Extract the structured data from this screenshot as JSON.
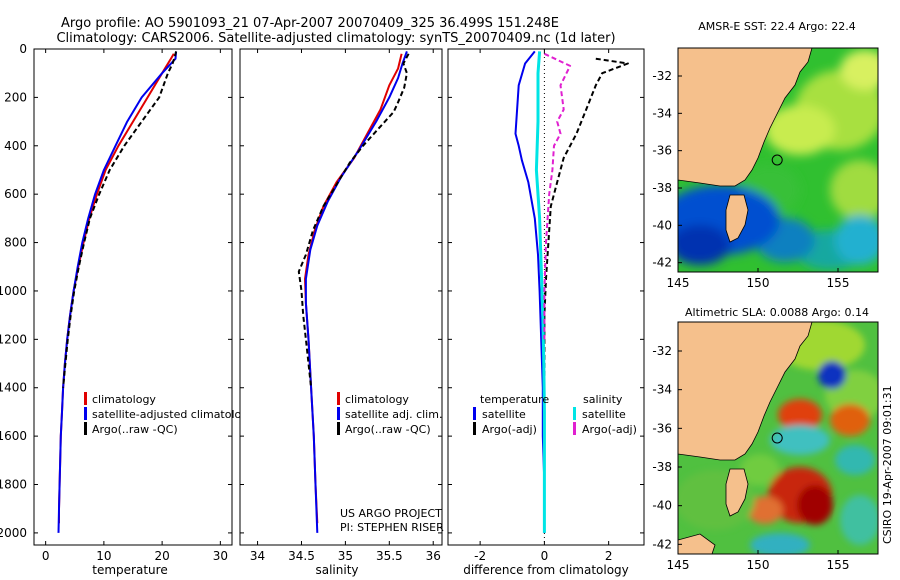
{
  "header": {
    "line1": "Argo profile: AO 5901093_21 07-Apr-2007 20070409_325 36.499S 151.248E",
    "line2": "Climatology: CARS2006. Satellite-adjusted climatology: synTS_20070409.nc (1d later)"
  },
  "colors": {
    "climatology": "#e00000",
    "satellite": "#0000ee",
    "argo": "#000000",
    "cyan": "#00e5e5",
    "magenta": "#e020d0",
    "land": "#f5c08c"
  },
  "chart_data": [
    {
      "type": "line",
      "xlabel": "temperature",
      "xlim": [
        -2,
        32
      ],
      "ylim": [
        0,
        2050
      ],
      "yticks": [
        0,
        200,
        400,
        600,
        800,
        1000,
        1200,
        1400,
        1600,
        1800,
        2000
      ],
      "xticks": [
        0,
        10,
        20,
        30
      ],
      "legend": [
        "climatology",
        "satellite-adjusted climatology",
        "Argo(..raw -QC)"
      ],
      "series": [
        {
          "name": "climatology",
          "points": [
            [
              22.0,
              20
            ],
            [
              21.5,
              40
            ],
            [
              20.0,
              100
            ],
            [
              17.5,
              200
            ],
            [
              15.0,
              300
            ],
            [
              12.5,
              400
            ],
            [
              10.3,
              500
            ],
            [
              8.8,
              600
            ],
            [
              7.5,
              700
            ],
            [
              6.5,
              800
            ],
            [
              5.6,
              900
            ],
            [
              4.8,
              1000
            ],
            [
              4.2,
              1100
            ],
            [
              3.7,
              1200
            ],
            [
              3.3,
              1300
            ],
            [
              3.0,
              1400
            ],
            [
              2.8,
              1500
            ],
            [
              2.6,
              1600
            ],
            [
              2.5,
              1700
            ],
            [
              2.4,
              1800
            ],
            [
              2.3,
              1900
            ],
            [
              2.3,
              1960
            ]
          ]
        },
        {
          "name": "satellite-adjusted climatology",
          "points": [
            [
              22.4,
              10
            ],
            [
              22.3,
              40
            ],
            [
              20.0,
              100
            ],
            [
              16.5,
              200
            ],
            [
              14.0,
              300
            ],
            [
              12.0,
              400
            ],
            [
              10.0,
              500
            ],
            [
              8.5,
              600
            ],
            [
              7.3,
              700
            ],
            [
              6.3,
              800
            ],
            [
              5.5,
              900
            ],
            [
              4.8,
              1000
            ],
            [
              4.2,
              1100
            ],
            [
              3.7,
              1200
            ],
            [
              3.3,
              1300
            ],
            [
              3.0,
              1400
            ],
            [
              2.8,
              1500
            ],
            [
              2.6,
              1600
            ],
            [
              2.5,
              1700
            ],
            [
              2.4,
              1800
            ],
            [
              2.3,
              1900
            ],
            [
              2.2,
              2000
            ]
          ]
        },
        {
          "name": "Argo(..raw -QC)",
          "points": [
            [
              22.4,
              10
            ],
            [
              22.2,
              30
            ],
            [
              21.8,
              60
            ],
            [
              21.0,
              100
            ],
            [
              19.5,
              200
            ],
            [
              16.5,
              300
            ],
            [
              13.5,
              400
            ],
            [
              11.0,
              500
            ],
            [
              9.2,
              600
            ],
            [
              7.6,
              700
            ],
            [
              6.6,
              800
            ],
            [
              5.7,
              900
            ],
            [
              4.9,
              1000
            ],
            [
              4.3,
              1100
            ],
            [
              3.8,
              1200
            ],
            [
              3.4,
              1300
            ],
            [
              3.0,
              1400
            ]
          ]
        }
      ]
    },
    {
      "type": "line",
      "xlabel": "salinity",
      "xlim": [
        33.8,
        36.1
      ],
      "ylim": [
        0,
        2050
      ],
      "xticks": [
        34,
        34.5,
        35,
        35.5,
        36
      ],
      "legend": [
        "climatology",
        "satellite adj. clim.",
        "Argo(..raw -QC)"
      ],
      "annotation": [
        "US ARGO PROJECT",
        "PI: STEPHEN RISER"
      ],
      "series": [
        {
          "name": "climatology",
          "points": [
            [
              35.64,
              20
            ],
            [
              35.6,
              80
            ],
            [
              35.5,
              150
            ],
            [
              35.4,
              250
            ],
            [
              35.25,
              350
            ],
            [
              35.1,
              450
            ],
            [
              34.9,
              550
            ],
            [
              34.75,
              650
            ],
            [
              34.65,
              750
            ],
            [
              34.58,
              850
            ],
            [
              34.54,
              950
            ],
            [
              34.55,
              1050
            ],
            [
              34.58,
              1200
            ],
            [
              34.61,
              1400
            ],
            [
              34.64,
              1600
            ],
            [
              34.66,
              1800
            ],
            [
              34.68,
              1960
            ]
          ]
        },
        {
          "name": "satellite adj. clim.",
          "points": [
            [
              35.7,
              10
            ],
            [
              35.65,
              60
            ],
            [
              35.6,
              120
            ],
            [
              35.5,
              200
            ],
            [
              35.35,
              300
            ],
            [
              35.15,
              420
            ],
            [
              34.95,
              530
            ],
            [
              34.8,
              630
            ],
            [
              34.68,
              730
            ],
            [
              34.6,
              830
            ],
            [
              34.55,
              950
            ],
            [
              34.55,
              1050
            ],
            [
              34.58,
              1200
            ],
            [
              34.61,
              1400
            ],
            [
              34.64,
              1600
            ],
            [
              34.66,
              1800
            ],
            [
              34.68,
              2000
            ]
          ]
        },
        {
          "name": "Argo(..raw -QC)",
          "points": [
            [
              35.72,
              20
            ],
            [
              35.66,
              60
            ],
            [
              35.7,
              100
            ],
            [
              35.67,
              160
            ],
            [
              35.6,
              220
            ],
            [
              35.55,
              260
            ],
            [
              35.4,
              320
            ],
            [
              35.2,
              400
            ],
            [
              35.05,
              470
            ],
            [
              34.9,
              560
            ],
            [
              34.75,
              650
            ],
            [
              34.63,
              750
            ],
            [
              34.55,
              850
            ],
            [
              34.47,
              920
            ],
            [
              34.5,
              1000
            ],
            [
              34.52,
              1100
            ],
            [
              34.55,
              1200
            ],
            [
              34.58,
              1300
            ],
            [
              34.61,
              1400
            ]
          ]
        }
      ]
    },
    {
      "type": "line",
      "xlabel": "difference from climatology",
      "xlim": [
        -3,
        3.1
      ],
      "ylim": [
        0,
        2050
      ],
      "xticks": [
        -2,
        0,
        2
      ],
      "legend_titles": [
        "temperature",
        "salinity"
      ],
      "legend": [
        "satellite",
        "Argo(-adj)",
        "satellite",
        "Argo(-adj)"
      ],
      "series": [
        {
          "name": "temperature satellite",
          "points": [
            [
              -0.3,
              10
            ],
            [
              -0.6,
              60
            ],
            [
              -0.8,
              150
            ],
            [
              -0.85,
              250
            ],
            [
              -0.9,
              350
            ],
            [
              -0.8,
              400
            ],
            [
              -0.7,
              460
            ],
            [
              -0.5,
              550
            ],
            [
              -0.3,
              700
            ],
            [
              -0.2,
              850
            ],
            [
              -0.15,
              1000
            ],
            [
              -0.1,
              1200
            ],
            [
              -0.05,
              1400
            ],
            [
              -0.05,
              1600
            ],
            [
              0,
              1800
            ],
            [
              0,
              2000
            ]
          ]
        },
        {
          "name": "temperature Argo(-adj)",
          "points": [
            [
              1.6,
              40
            ],
            [
              2.6,
              60
            ],
            [
              1.8,
              100
            ],
            [
              1.6,
              150
            ],
            [
              1.3,
              250
            ],
            [
              1.0,
              350
            ],
            [
              0.6,
              450
            ],
            [
              0.4,
              550
            ],
            [
              0.2,
              650
            ],
            [
              0.15,
              750
            ],
            [
              0.1,
              850
            ],
            [
              0.05,
              950
            ],
            [
              0,
              1100
            ],
            [
              0,
              1400
            ]
          ]
        },
        {
          "name": "salinity satellite",
          "points": [
            [
              -0.15,
              10
            ],
            [
              -0.2,
              100
            ],
            [
              -0.2,
              300
            ],
            [
              -0.25,
              500
            ],
            [
              -0.15,
              700
            ],
            [
              -0.1,
              900
            ],
            [
              -0.05,
              1100
            ],
            [
              -0.02,
              1300
            ],
            [
              0,
              1500
            ],
            [
              0,
              1700
            ],
            [
              0,
              2000
            ]
          ]
        },
        {
          "name": "salinity Argo(-adj)",
          "points": [
            [
              0,
              20
            ],
            [
              0.8,
              70
            ],
            [
              0.5,
              150
            ],
            [
              0.6,
              250
            ],
            [
              0.4,
              300
            ],
            [
              0.5,
              350
            ],
            [
              0.3,
              400
            ],
            [
              0.25,
              500
            ],
            [
              0.15,
              600
            ],
            [
              0.1,
              700
            ],
            [
              0.05,
              800
            ],
            [
              0,
              1000
            ],
            [
              0,
              1200
            ]
          ]
        }
      ]
    },
    {
      "type": "heatmap",
      "title": "AMSR-E SST: 22.4 Argo: 22.4",
      "xlim": [
        145,
        157.5
      ],
      "ylim": [
        -42.5,
        -30.5
      ],
      "xticks": [
        145,
        150,
        155
      ],
      "yticks": [
        -32,
        -34,
        -36,
        -38,
        -40,
        -42
      ],
      "argo_position": {
        "lon": 151.2,
        "lat": -36.5
      }
    },
    {
      "type": "heatmap",
      "title": "Altimetric SLA: 0.0088 Argo: 0.14",
      "xlim": [
        145,
        157.5
      ],
      "ylim": [
        -42.5,
        -30.5
      ],
      "xticks": [
        145,
        150,
        155
      ],
      "yticks": [
        -32,
        -34,
        -36,
        -38,
        -40,
        -42
      ],
      "argo_position": {
        "lon": 151.2,
        "lat": -36.5
      }
    }
  ],
  "stamp": "CSIRO 19-Apr-2007 09:01:31"
}
